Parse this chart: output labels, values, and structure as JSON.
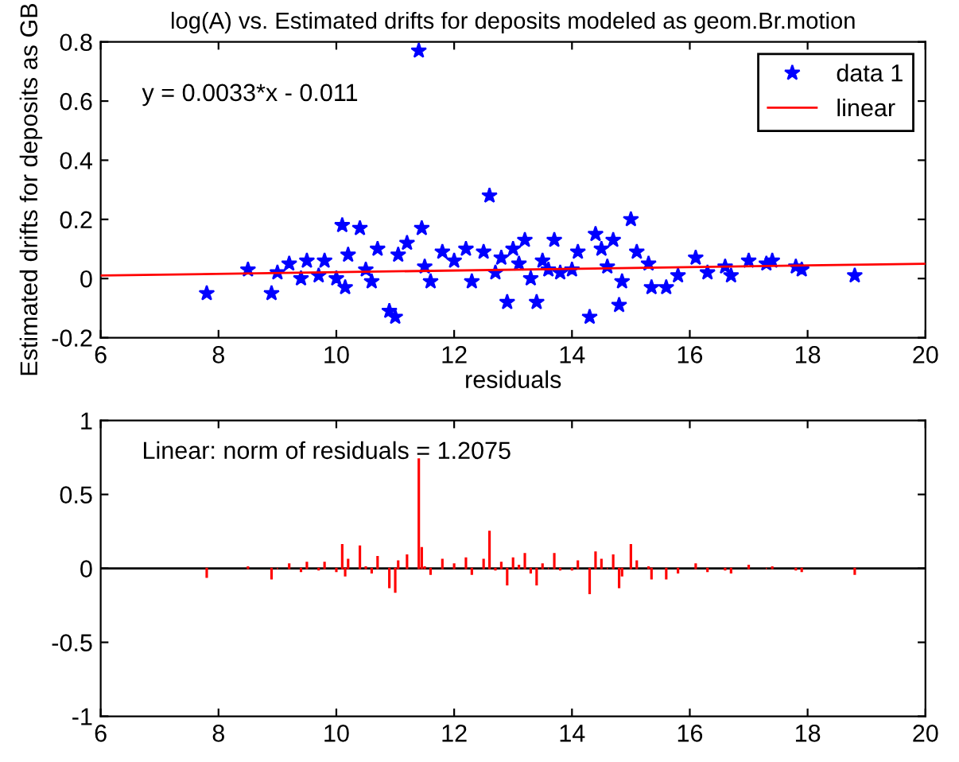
{
  "chart_data": [
    {
      "type": "scatter",
      "title": "log(A) vs. Estimated drifts for deposits modeled as geom.Br.motion",
      "xlabel": "residuals",
      "ylabel": "Estimated drifts for deposits as GB",
      "annotations": [
        "y = 0.0033*x - 0.011"
      ],
      "xlim": [
        6,
        20
      ],
      "xticks": [
        6,
        8,
        10,
        12,
        14,
        16,
        18,
        20
      ],
      "ylim": [
        -0.2,
        0.8
      ],
      "yticks": [
        -0.2,
        0,
        0.2,
        0.4,
        0.6,
        0.8
      ],
      "grid": false,
      "legend": "top right",
      "series": [
        {
          "name": "data 1",
          "marker": "star",
          "color": "#0000ff",
          "x": [
            7.8,
            8.5,
            8.9,
            9.0,
            9.2,
            9.4,
            9.5,
            9.7,
            9.8,
            10.0,
            10.1,
            10.15,
            10.2,
            10.4,
            10.5,
            10.6,
            10.7,
            10.9,
            11.0,
            11.05,
            11.2,
            11.4,
            11.45,
            11.5,
            11.6,
            11.8,
            12.0,
            12.2,
            12.3,
            12.5,
            12.6,
            12.7,
            12.8,
            12.9,
            13.0,
            13.1,
            13.2,
            13.3,
            13.4,
            13.5,
            13.6,
            13.7,
            13.8,
            14.0,
            14.1,
            14.3,
            14.4,
            14.5,
            14.6,
            14.7,
            14.8,
            14.85,
            15.0,
            15.1,
            15.3,
            15.35,
            15.6,
            15.8,
            16.1,
            16.3,
            16.6,
            16.7,
            17.0,
            17.3,
            17.4,
            17.8,
            17.9,
            18.8
          ],
          "values": [
            -0.05,
            0.03,
            -0.05,
            0.02,
            0.05,
            0.0,
            0.06,
            0.01,
            0.06,
            0.0,
            0.18,
            -0.03,
            0.08,
            0.17,
            0.03,
            -0.01,
            0.1,
            -0.11,
            -0.13,
            0.08,
            0.12,
            0.77,
            0.17,
            0.04,
            -0.01,
            0.09,
            0.06,
            0.1,
            -0.01,
            0.09,
            0.28,
            0.02,
            0.07,
            -0.08,
            0.1,
            0.05,
            0.13,
            0.0,
            -0.08,
            0.06,
            0.03,
            0.13,
            0.02,
            0.03,
            0.09,
            -0.13,
            0.15,
            0.1,
            0.04,
            0.13,
            -0.09,
            -0.01,
            0.2,
            0.09,
            0.05,
            -0.03,
            -0.03,
            0.01,
            0.07,
            0.02,
            0.04,
            0.01,
            0.06,
            0.05,
            0.06,
            0.04,
            0.03,
            0.01
          ]
        },
        {
          "name": "linear",
          "type": "line",
          "marker": "none",
          "line_style": "solid",
          "color": "#ff0000",
          "x": [
            6,
            20
          ],
          "values": [
            0.01,
            0.05
          ]
        }
      ]
    },
    {
      "type": "bar",
      "annotations": [
        "Linear: norm of residuals = 1.2075"
      ],
      "xlim": [
        6,
        20
      ],
      "xticks": [
        6,
        8,
        10,
        12,
        14,
        16,
        18,
        20
      ],
      "ylim": [
        -1,
        1
      ],
      "yticks": [
        -1,
        -0.5,
        0,
        0.5,
        1
      ],
      "grid": false,
      "legend": false,
      "ref_lines": [
        {
          "axis": "y",
          "value": 0,
          "color": "#000000"
        }
      ],
      "series": [
        {
          "color": "#ff0000",
          "x": [
            7.8,
            8.5,
            8.9,
            9.0,
            9.2,
            9.4,
            9.5,
            9.7,
            9.8,
            10.0,
            10.1,
            10.15,
            10.2,
            10.4,
            10.5,
            10.6,
            10.7,
            10.9,
            11.0,
            11.05,
            11.2,
            11.4,
            11.45,
            11.5,
            11.6,
            11.8,
            12.0,
            12.2,
            12.3,
            12.5,
            12.6,
            12.7,
            12.8,
            12.9,
            13.0,
            13.1,
            13.2,
            13.3,
            13.4,
            13.5,
            13.6,
            13.7,
            13.8,
            14.0,
            14.1,
            14.3,
            14.4,
            14.5,
            14.6,
            14.7,
            14.8,
            14.85,
            15.0,
            15.1,
            15.3,
            15.35,
            15.6,
            15.8,
            16.1,
            16.3,
            16.6,
            16.7,
            17.0,
            17.3,
            17.4,
            17.8,
            17.9,
            18.8
          ],
          "values": [
            -0.06,
            0.01,
            -0.07,
            0.0,
            0.03,
            -0.02,
            0.04,
            -0.01,
            0.04,
            -0.02,
            0.16,
            -0.05,
            0.06,
            0.15,
            0.01,
            -0.03,
            0.08,
            -0.13,
            -0.16,
            0.05,
            0.09,
            0.74,
            0.14,
            0.01,
            -0.04,
            0.06,
            0.03,
            0.07,
            -0.04,
            0.06,
            0.25,
            -0.01,
            0.04,
            -0.11,
            0.07,
            0.02,
            0.1,
            -0.03,
            -0.11,
            0.03,
            0.0,
            0.1,
            -0.01,
            -0.01,
            0.05,
            -0.17,
            0.11,
            0.06,
            0.0,
            0.09,
            -0.13,
            -0.05,
            0.16,
            0.05,
            0.01,
            -0.07,
            -0.07,
            -0.03,
            0.03,
            -0.02,
            -0.01,
            -0.03,
            0.02,
            0.0,
            0.01,
            -0.01,
            -0.02,
            -0.04
          ]
        }
      ]
    }
  ]
}
